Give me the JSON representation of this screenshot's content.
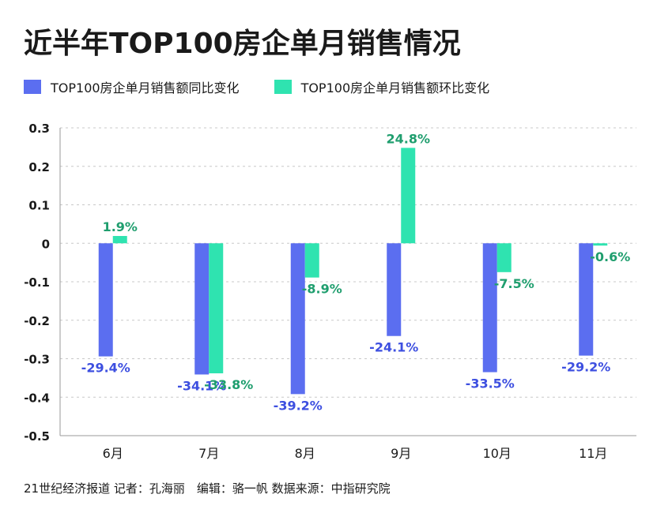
{
  "colors": {
    "series1": "#5b6ef0",
    "series2": "#2fe3b0",
    "label1": "#3d4fe0",
    "label2": "#1f9e6e",
    "grid": "#c8c8c8",
    "axis": "#9a9a9a"
  },
  "title": "近半年TOP100房企单月销售情况",
  "footer": "21世纪经济报道 记者：孔海丽　编辑：骆一帆 数据来源：中指研究院",
  "chart_data": {
    "type": "bar",
    "title": "近半年TOP100房企单月销售情况",
    "categories": [
      "6月",
      "7月",
      "8月",
      "9月",
      "10月",
      "11月"
    ],
    "series": [
      {
        "name": "TOP100房企单月销售额同比变化",
        "values": [
          -0.294,
          -0.341,
          -0.392,
          -0.241,
          -0.335,
          -0.292
        ],
        "labels": [
          "-29.4%",
          "-34.1%",
          "-39.2%",
          "-24.1%",
          "-33.5%",
          "-29.2%"
        ]
      },
      {
        "name": "TOP100房企单月销售额环比变化",
        "values": [
          0.019,
          -0.338,
          -0.089,
          0.248,
          -0.075,
          -0.006
        ],
        "labels": [
          "1.9%",
          "-33.8%",
          "-8.9%",
          "24.8%",
          "-7.5%",
          "-0.6%"
        ]
      }
    ],
    "ylim": [
      -0.5,
      0.3
    ],
    "yticks": [
      0.3,
      0.2,
      0.1,
      0,
      -0.1,
      -0.2,
      -0.3,
      -0.4,
      -0.5
    ],
    "ytick_labels": [
      "0.3",
      "0.2",
      "0.1",
      "0",
      "-0.1",
      "-0.2",
      "-0.3",
      "-0.4",
      "-0.5"
    ],
    "grid": true,
    "legend_position": "top-left"
  }
}
